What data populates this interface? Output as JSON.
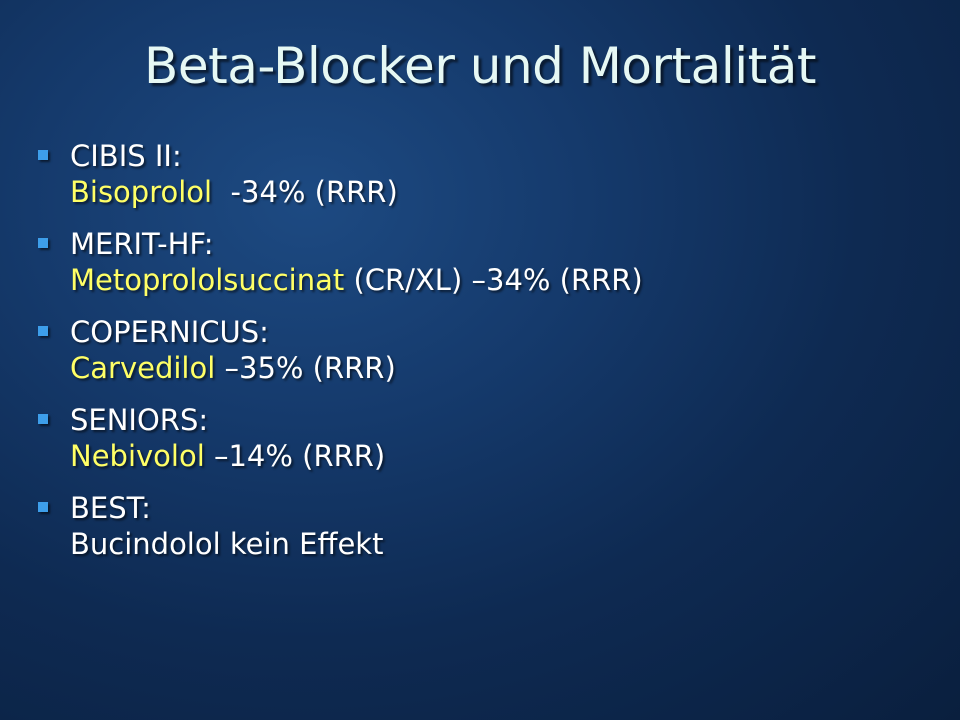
{
  "slide": {
    "title": "Beta-Blocker und Mortalität",
    "items": [
      {
        "trial": "CIBIS II:",
        "drug": "Bisoprolol",
        "result": "  -34% (RRR)"
      },
      {
        "trial": "MERIT-HF:",
        "drug": "Metoprololsuccinat",
        "result": " (CR/XL) –34% (RRR)"
      },
      {
        "trial": "COPERNICUS:",
        "drug": "Carvedilol",
        "result": " –35% (RRR)"
      },
      {
        "trial": "SENIORS:",
        "drug": "Nebivolol",
        "result": " –14% (RRR)"
      },
      {
        "trial": "BEST:",
        "drug": "",
        "result": "Bucindolol kein Effekt"
      }
    ]
  },
  "colors": {
    "title": "#e6f8f4",
    "bullet": "#3d9eea",
    "drug_text": "#ffff66",
    "body_text": "#ffffff"
  }
}
